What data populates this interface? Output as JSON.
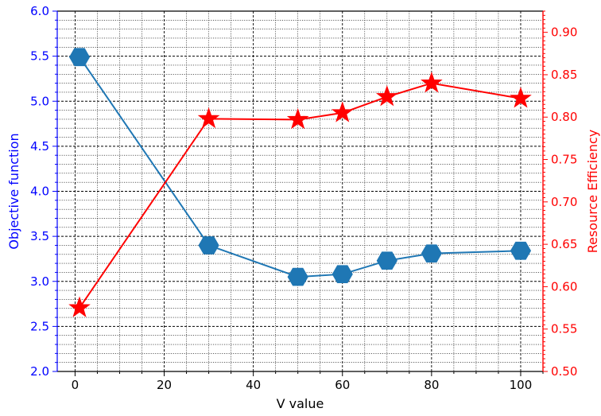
{
  "chart_data": {
    "type": "line",
    "xlabel": "V value",
    "ylabel": "Objective function",
    "y2label": "Resource Efficiency",
    "xlim": [
      -4,
      105
    ],
    "ylim": [
      2.0,
      6.0
    ],
    "y2lim": [
      0.5,
      0.925
    ],
    "x_ticks": [
      0,
      20,
      40,
      60,
      80,
      100
    ],
    "y_ticks": [
      2.0,
      2.5,
      3.0,
      3.5,
      4.0,
      4.5,
      5.0,
      5.5,
      6.0
    ],
    "y2_ticks": [
      0.5,
      0.55,
      0.6,
      0.65,
      0.7,
      0.75,
      0.8,
      0.85,
      0.9
    ],
    "grid": true,
    "colors": {
      "left_axis": "#0000ff",
      "right_axis": "#ff0000",
      "objective": "#1f77b4",
      "efficiency": "#ff0000"
    },
    "series": [
      {
        "axis": "left",
        "marker": "hexagon",
        "x": [
          1,
          30,
          50,
          60,
          70,
          80,
          100
        ],
        "values": [
          5.49,
          3.4,
          3.05,
          3.08,
          3.23,
          3.31,
          3.34
        ]
      },
      {
        "axis": "right",
        "marker": "star",
        "x": [
          1,
          30,
          50,
          60,
          70,
          80,
          100
        ],
        "values": [
          0.575,
          0.798,
          0.797,
          0.805,
          0.824,
          0.84,
          0.822
        ]
      }
    ]
  }
}
